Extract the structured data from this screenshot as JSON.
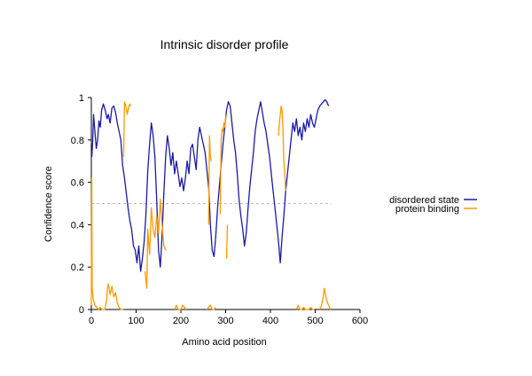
{
  "chart_data": {
    "type": "line",
    "title": "Intrinsic disorder profile",
    "xlabel": "Amino acid position",
    "ylabel": "Confidence score",
    "xlim": [
      0,
      600
    ],
    "ylim": [
      0,
      1
    ],
    "xticks": [
      0,
      100,
      200,
      300,
      400,
      500,
      600
    ],
    "yticks": [
      0,
      0.2,
      0.4,
      0.6,
      0.8,
      1
    ],
    "threshold": 0.5,
    "legend_position": "right",
    "series": [
      {
        "name": "disordered state",
        "color": "#1a1aa6",
        "points": [
          [
            1,
            0.72
          ],
          [
            3,
            0.79
          ],
          [
            5,
            0.92
          ],
          [
            8,
            0.84
          ],
          [
            11,
            0.76
          ],
          [
            14,
            0.8
          ],
          [
            17,
            0.89
          ],
          [
            20,
            0.86
          ],
          [
            23,
            0.94
          ],
          [
            27,
            0.97
          ],
          [
            31,
            0.94
          ],
          [
            35,
            0.9
          ],
          [
            38,
            0.92
          ],
          [
            42,
            0.88
          ],
          [
            46,
            0.95
          ],
          [
            50,
            0.96
          ],
          [
            54,
            0.93
          ],
          [
            58,
            0.88
          ],
          [
            62,
            0.84
          ],
          [
            66,
            0.8
          ],
          [
            70,
            0.68
          ],
          [
            74,
            0.62
          ],
          [
            78,
            0.55
          ],
          [
            82,
            0.48
          ],
          [
            86,
            0.42
          ],
          [
            90,
            0.38
          ],
          [
            94,
            0.3
          ],
          [
            98,
            0.28
          ],
          [
            102,
            0.22
          ],
          [
            106,
            0.3
          ],
          [
            110,
            0.18
          ],
          [
            114,
            0.24
          ],
          [
            118,
            0.32
          ],
          [
            122,
            0.45
          ],
          [
            126,
            0.65
          ],
          [
            130,
            0.78
          ],
          [
            134,
            0.88
          ],
          [
            138,
            0.82
          ],
          [
            142,
            0.72
          ],
          [
            146,
            0.52
          ],
          [
            150,
            0.28
          ],
          [
            154,
            0.2
          ],
          [
            158,
            0.35
          ],
          [
            162,
            0.55
          ],
          [
            166,
            0.72
          ],
          [
            170,
            0.82
          ],
          [
            174,
            0.76
          ],
          [
            178,
            0.68
          ],
          [
            182,
            0.74
          ],
          [
            186,
            0.64
          ],
          [
            190,
            0.7
          ],
          [
            194,
            0.64
          ],
          [
            198,
            0.58
          ],
          [
            202,
            0.62
          ],
          [
            206,
            0.56
          ],
          [
            210,
            0.62
          ],
          [
            214,
            0.7
          ],
          [
            218,
            0.64
          ],
          [
            222,
            0.76
          ],
          [
            226,
            0.78
          ],
          [
            230,
            0.72
          ],
          [
            234,
            0.66
          ],
          [
            238,
            0.8
          ],
          [
            242,
            0.86
          ],
          [
            246,
            0.82
          ],
          [
            250,
            0.78
          ],
          [
            254,
            0.74
          ],
          [
            258,
            0.66
          ],
          [
            262,
            0.58
          ],
          [
            266,
            0.4
          ],
          [
            270,
            0.28
          ],
          [
            274,
            0.25
          ],
          [
            278,
            0.35
          ],
          [
            282,
            0.48
          ],
          [
            286,
            0.58
          ],
          [
            290,
            0.68
          ],
          [
            294,
            0.78
          ],
          [
            298,
            0.86
          ],
          [
            302,
            0.94
          ],
          [
            306,
            0.98
          ],
          [
            310,
            0.96
          ],
          [
            314,
            0.88
          ],
          [
            318,
            0.8
          ],
          [
            322,
            0.74
          ],
          [
            326,
            0.64
          ],
          [
            330,
            0.52
          ],
          [
            334,
            0.44
          ],
          [
            338,
            0.38
          ],
          [
            342,
            0.3
          ],
          [
            346,
            0.36
          ],
          [
            350,
            0.48
          ],
          [
            354,
            0.58
          ],
          [
            358,
            0.66
          ],
          [
            362,
            0.74
          ],
          [
            366,
            0.84
          ],
          [
            370,
            0.9
          ],
          [
            374,
            0.94
          ],
          [
            378,
            0.98
          ],
          [
            382,
            0.93
          ],
          [
            386,
            0.88
          ],
          [
            390,
            0.84
          ],
          [
            394,
            0.78
          ],
          [
            398,
            0.72
          ],
          [
            402,
            0.64
          ],
          [
            406,
            0.56
          ],
          [
            410,
            0.48
          ],
          [
            414,
            0.4
          ],
          [
            418,
            0.32
          ],
          [
            422,
            0.22
          ],
          [
            426,
            0.34
          ],
          [
            430,
            0.44
          ],
          [
            434,
            0.56
          ],
          [
            438,
            0.64
          ],
          [
            442,
            0.72
          ],
          [
            446,
            0.8
          ],
          [
            450,
            0.88
          ],
          [
            454,
            0.84
          ],
          [
            458,
            0.9
          ],
          [
            462,
            0.82
          ],
          [
            466,
            0.86
          ],
          [
            470,
            0.8
          ],
          [
            474,
            0.88
          ],
          [
            478,
            0.84
          ],
          [
            482,
            0.9
          ],
          [
            486,
            0.86
          ],
          [
            490,
            0.92
          ],
          [
            494,
            0.88
          ],
          [
            498,
            0.86
          ],
          [
            502,
            0.9
          ],
          [
            506,
            0.94
          ],
          [
            510,
            0.96
          ],
          [
            514,
            0.97
          ],
          [
            518,
            0.98
          ],
          [
            522,
            0.99
          ],
          [
            526,
            0.98
          ],
          [
            530,
            0.96
          ]
        ]
      },
      {
        "name": "protein binding",
        "color": "#ff9900",
        "segments": [
          [
            [
              0,
              0.02
            ],
            [
              1,
              0.62
            ],
            [
              2,
              0.1
            ],
            [
              4,
              0.05
            ],
            [
              8,
              0.02
            ],
            [
              12,
              0.01
            ],
            [
              16,
              0.0
            ],
            [
              20,
              0.01
            ],
            [
              24,
              0.0
            ],
            [
              30,
              0.0
            ],
            [
              34,
              0.04
            ],
            [
              36,
              0.1
            ],
            [
              38,
              0.12
            ],
            [
              42,
              0.07
            ],
            [
              46,
              0.11
            ],
            [
              50,
              0.06
            ],
            [
              54,
              0.08
            ],
            [
              58,
              0.03
            ],
            [
              62,
              0.01
            ],
            [
              66,
              0.0
            ],
            [
              72,
              0.0
            ]
          ],
          [
            [
              72,
              0.72
            ],
            [
              74,
              0.98
            ],
            [
              77,
              0.96
            ],
            [
              80,
              0.92
            ],
            [
              83,
              0.95
            ],
            [
              86,
              0.97
            ],
            [
              88,
              0.96
            ]
          ],
          [
            [
              120,
              0.18
            ],
            [
              124,
              0.1
            ],
            [
              126,
              0.38
            ],
            [
              130,
              0.26
            ],
            [
              134,
              0.48
            ],
            [
              138,
              0.38
            ],
            [
              142,
              0.34
            ],
            [
              146,
              0.44
            ],
            [
              150,
              0.36
            ],
            [
              154,
              0.52
            ],
            [
              158,
              0.4
            ],
            [
              162,
              0.3
            ],
            [
              166,
              0.28
            ]
          ],
          [
            [
              186,
              0.0
            ],
            [
              190,
              0.02
            ],
            [
              194,
              0.0
            ],
            [
              200,
              0.0
            ],
            [
              204,
              0.02
            ],
            [
              208,
              0.01
            ],
            [
              212,
              0.0
            ]
          ],
          [
            [
              258,
              0.0
            ],
            [
              262,
              0.01
            ],
            [
              266,
              0.02
            ],
            [
              270,
              0.0
            ],
            [
              274,
              0.0
            ],
            [
              278,
              0.01
            ]
          ],
          [
            [
              262,
              0.4
            ],
            [
              264,
              0.82
            ],
            [
              266,
              0.72
            ],
            [
              268,
              0.7
            ]
          ],
          [
            [
              288,
              0.45
            ],
            [
              290,
              0.8
            ],
            [
              292,
              0.85
            ],
            [
              294,
              0.84
            ],
            [
              296,
              0.88
            ],
            [
              298,
              0.86
            ],
            [
              300,
              0.9
            ],
            [
              302,
              0.92
            ]
          ],
          [
            [
              302,
              0.24
            ],
            [
              304,
              0.4
            ]
          ],
          [
            [
              418,
              0.82
            ],
            [
              420,
              0.88
            ],
            [
              422,
              0.92
            ],
            [
              424,
              0.96
            ],
            [
              426,
              0.94
            ],
            [
              428,
              0.86
            ],
            [
              430,
              0.7
            ],
            [
              432,
              0.64
            ],
            [
              434,
              0.56
            ]
          ],
          [
            [
              458,
              0.0
            ],
            [
              462,
              0.02
            ],
            [
              466,
              0.0
            ],
            [
              470,
              0.0
            ],
            [
              474,
              0.01
            ],
            [
              478,
              0.0
            ],
            [
              482,
              0.0
            ],
            [
              486,
              0.0
            ],
            [
              490,
              0.01
            ],
            [
              494,
              0.0
            ],
            [
              498,
              0.0
            ]
          ],
          [
            [
              510,
              0.0
            ],
            [
              514,
              0.02
            ],
            [
              518,
              0.06
            ],
            [
              520,
              0.1
            ],
            [
              522,
              0.08
            ],
            [
              526,
              0.04
            ],
            [
              530,
              0.02
            ],
            [
              534,
              0.0
            ]
          ]
        ]
      }
    ]
  }
}
